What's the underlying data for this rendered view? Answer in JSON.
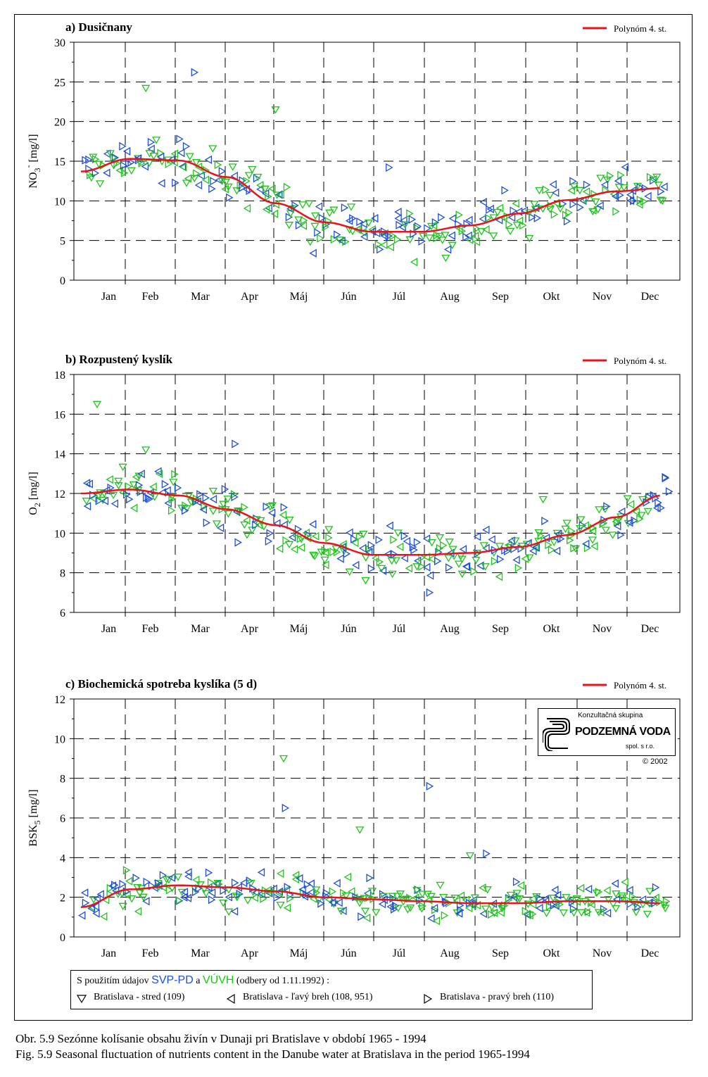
{
  "chart_data": [
    {
      "type": "scatter",
      "title": "a) Dusičnany",
      "ylabel_main": "NO",
      "ylabel_sub": "3",
      "ylabel_sup": "-",
      "ylabel_unit": " [mg/l]",
      "ylim": [
        0,
        30
      ],
      "yticks": [
        0,
        5,
        10,
        15,
        20,
        25,
        30
      ],
      "xlim": [
        0,
        365
      ],
      "month_labels": [
        "Jan",
        "Feb",
        "Mar",
        "Apr",
        "Máj",
        "Jún",
        "Júl",
        "Aug",
        "Sep",
        "Okt",
        "Nov",
        "Dec"
      ],
      "grid": true,
      "legend_placement": "top-right",
      "fit_label": "Polynóm 4. st.",
      "fit_curve": {
        "x": [
          0,
          30,
          60,
          90,
          120,
          150,
          180,
          210,
          240,
          270,
          300,
          330,
          358
        ],
        "y": [
          13.7,
          15.3,
          15.1,
          13.0,
          9.7,
          7.3,
          6.1,
          6.1,
          6.9,
          8.4,
          10.1,
          11.2,
          11.6
        ]
      },
      "scatter_hint": {
        "noise": 2.2,
        "outliers_x": [
          40,
          70,
          120,
          190,
          225
        ],
        "outliers_y": [
          24.2,
          26.2,
          21.5,
          14.2,
          2.8
        ]
      }
    },
    {
      "type": "scatter",
      "title": "b) Rozpustený kyslík",
      "ylabel_main": "O",
      "ylabel_sub": "2",
      "ylabel_sup": "",
      "ylabel_unit": " [mg/l]",
      "ylim": [
        6,
        18
      ],
      "yticks": [
        6,
        8,
        10,
        12,
        14,
        16,
        18
      ],
      "xlim": [
        0,
        365
      ],
      "month_labels": [
        "Jan",
        "Feb",
        "Mar",
        "Apr",
        "Máj",
        "Jún",
        "Júl",
        "Aug",
        "Sep",
        "Okt",
        "Nov",
        "Dec"
      ],
      "grid": true,
      "legend_placement": "top-right",
      "fit_label": "Polynóm 4. st.",
      "fit_curve": {
        "x": [
          0,
          30,
          60,
          90,
          120,
          150,
          180,
          210,
          240,
          270,
          300,
          330,
          358
        ],
        "y": [
          12.0,
          12.2,
          11.9,
          11.2,
          10.4,
          9.5,
          8.9,
          8.9,
          9.0,
          9.3,
          9.9,
          10.8,
          11.9
        ]
      },
      "scatter_hint": {
        "noise": 0.9,
        "outliers_x": [
          10,
          95,
          40,
          215,
          285
        ],
        "outliers_y": [
          16.5,
          14.5,
          14.2,
          7.0,
          11.7
        ]
      }
    },
    {
      "type": "scatter",
      "title": "c) Biochemická spotreba kyslíka (5 d)",
      "ylabel_main": "BSK",
      "ylabel_sub": "5",
      "ylabel_sup": "",
      "ylabel_unit": " [mg/l]",
      "ylim": [
        0,
        12
      ],
      "yticks": [
        0,
        2,
        4,
        6,
        8,
        10,
        12
      ],
      "xlim": [
        0,
        365
      ],
      "month_labels": [
        "Jan",
        "Feb",
        "Mar",
        "Apr",
        "Máj",
        "Jún",
        "Júl",
        "Aug",
        "Sep",
        "Okt",
        "Nov",
        "Dec"
      ],
      "grid": true,
      "legend_placement": "top-right",
      "fit_label": "Polynóm 4. st.",
      "fit_curve": {
        "x": [
          0,
          30,
          60,
          90,
          120,
          150,
          180,
          210,
          240,
          270,
          300,
          330,
          358
        ],
        "y": [
          1.5,
          2.4,
          2.6,
          2.5,
          2.3,
          2.0,
          1.9,
          1.8,
          1.7,
          1.7,
          1.8,
          1.8,
          1.7
        ]
      },
      "scatter_hint": {
        "noise": 0.7,
        "outliers_x": [
          125,
          126,
          172,
          215,
          240,
          250
        ],
        "outliers_y": [
          9.0,
          6.5,
          5.4,
          7.6,
          4.1,
          4.2
        ]
      }
    }
  ],
  "legend": {
    "prefix": "S použitím údajov",
    "source1": "SVP-PD",
    "joiner": "a",
    "source2": "VÚVH",
    "suffix": "(odbery od 1.11.1992) :",
    "series": [
      {
        "marker": "triangle-down-icon",
        "label": "Bratislava - stred (109)"
      },
      {
        "marker": "triangle-left-icon",
        "label": "Bratislava - ľavý breh (108, 951)"
      },
      {
        "marker": "triangle-right-icon",
        "label": "Bratislava - pravý breh (110)"
      }
    ]
  },
  "logo": {
    "line1": "Konzultačná skupina",
    "line2": "PODZEMNÁ VODA",
    "line3": "spol. s r.o.",
    "copyright": "© 2002"
  },
  "caption": {
    "line1": "Obr. 5.9  Sezónne kolísanie obsahu živín v Dunaji pri Bratislave v období 1965 - 1994",
    "line2": "Fig. 5.9  Seasonal fluctuation of nutrients content in the Danube water at Bratislava in the period 1965-1994"
  },
  "colors": {
    "blue": "#1f4fd8",
    "green": "#22c21f",
    "fit": "#e8141b"
  }
}
